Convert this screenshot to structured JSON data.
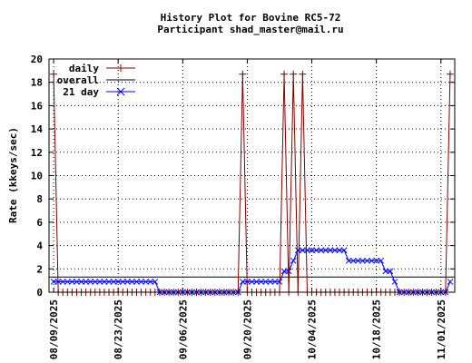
{
  "chart_data": {
    "type": "line",
    "title": "History Plot for Bovine RC5-72",
    "subtitle": "Participant shad_master@mail.ru",
    "xlabel": "",
    "ylabel": "Rate (kkeys/sec)",
    "ylim": [
      0,
      20
    ],
    "yticks": [
      0,
      2,
      4,
      6,
      8,
      10,
      12,
      14,
      16,
      18,
      20
    ],
    "xlim": [
      "2025-08-08",
      "2025-11-04"
    ],
    "xticks": [
      "08/09/2025",
      "08/23/2025",
      "09/06/2025",
      "09/20/2025",
      "10/04/2025",
      "10/18/2025",
      "11/01/2025"
    ],
    "grid": true,
    "legend_position": "top-left",
    "colors": {
      "daily": "#800000",
      "overall": "#000000",
      "21day": "#0000ff"
    },
    "daily_spikes": [
      {
        "date": "2025-08-09",
        "value": 18.7
      },
      {
        "date": "2025-09-19",
        "value": 18.7
      },
      {
        "date": "2025-09-28",
        "value": 18.7
      },
      {
        "date": "2025-09-30",
        "value": 18.7
      },
      {
        "date": "2025-10-02",
        "value": 18.7
      },
      {
        "date": "2025-11-03",
        "value": 18.7
      }
    ],
    "series": [
      {
        "name": "daily",
        "style": "impulses-with-markers",
        "baseline": 0
      },
      {
        "name": "overall",
        "style": "line",
        "values": [
          [
            "2025-08-08",
            1.3
          ],
          [
            "2025-11-04",
            1.3
          ]
        ]
      },
      {
        "name": "21 day",
        "style": "line-with-markers",
        "values": [
          [
            "2025-08-09",
            0.9
          ],
          [
            "2025-08-31",
            0.9
          ],
          [
            "2025-09-01",
            0.0
          ],
          [
            "2025-09-18",
            0.0
          ],
          [
            "2025-09-19",
            0.9
          ],
          [
            "2025-09-27",
            0.9
          ],
          [
            "2025-09-28",
            1.8
          ],
          [
            "2025-09-29",
            1.8
          ],
          [
            "2025-09-30",
            2.7
          ],
          [
            "2025-10-01",
            3.6
          ],
          [
            "2025-10-11",
            3.6
          ],
          [
            "2025-10-12",
            2.7
          ],
          [
            "2025-10-19",
            2.7
          ],
          [
            "2025-10-20",
            1.8
          ],
          [
            "2025-10-21",
            1.8
          ],
          [
            "2025-10-22",
            0.9
          ],
          [
            "2025-10-23",
            0.0
          ],
          [
            "2025-11-02",
            0.0
          ],
          [
            "2025-11-03",
            0.9
          ]
        ]
      }
    ]
  }
}
